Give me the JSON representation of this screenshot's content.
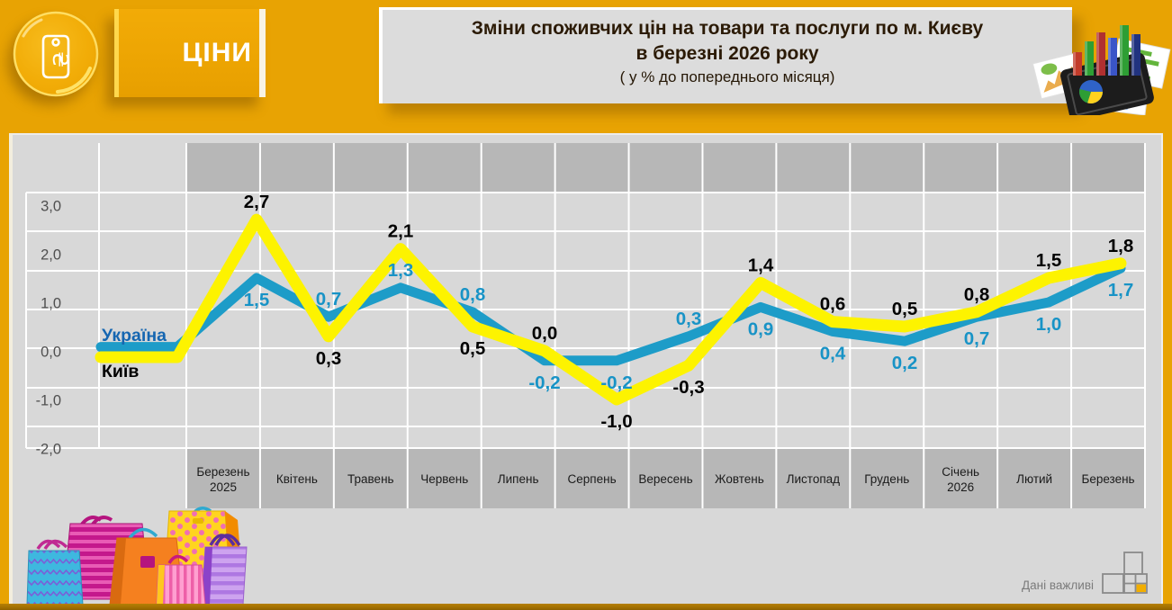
{
  "header": {
    "category_label": "ЦІНИ",
    "title_line1": "Зміни споживчих цін на товари та послуги по м. Києву",
    "title_line2": "в березні 2026 року",
    "title_line3": "( у  % до попереднього місяця)"
  },
  "footer": {
    "brand_text": "Дані важливі"
  },
  "colors": {
    "background_orange": "#E8A303",
    "panel_grey": "#D8D8D8",
    "band_grey": "#B7B7B7",
    "grid_white": "#FFFFFF",
    "ukraine_line": "#1D9CC8",
    "kyiv_line": "#FDF300",
    "ukraine_label": "#1893C6",
    "kyiv_label": "#000000",
    "legend_ukraine": "#1566B1",
    "tick_label": "#4F4F4F",
    "month_label": "#1B1B1B",
    "logo_accent": "#F2AE00"
  },
  "chart_data": {
    "type": "line",
    "title": "Зміни споживчих цін на товари та послуги по м. Києву в березні 2026 року",
    "subtitle": "( у % до попереднього місяця)",
    "unit": "%",
    "categories": [
      "Березень\n2025",
      "Квітень",
      "Травень",
      "Червень",
      "Липень",
      "Серпень",
      "Вересень",
      "Жовтень",
      "Листопад",
      "Грудень",
      "Січень\n2026",
      "Лютий",
      "Березень"
    ],
    "series": [
      {
        "name": "Україна",
        "color": "#1D9CC8",
        "label_color": "#1893C6",
        "stroke_width": 11,
        "lead_in": 0.08,
        "values": [
          1.5,
          0.7,
          1.3,
          0.8,
          -0.2,
          -0.2,
          0.3,
          0.9,
          0.4,
          0.2,
          0.7,
          1.0,
          1.7
        ],
        "label_side": [
          "below",
          "above",
          "above",
          "above",
          "below",
          "below",
          "above",
          "below",
          "below",
          "below",
          "below",
          "below",
          "below"
        ]
      },
      {
        "name": "Київ",
        "color": "#FDF300",
        "label_color": "#000000",
        "stroke_width": 13,
        "lead_in": -0.13,
        "values": [
          2.7,
          0.3,
          2.1,
          0.5,
          0.0,
          -1.0,
          -0.3,
          1.4,
          0.6,
          0.5,
          0.8,
          1.5,
          1.8
        ],
        "label_side": [
          "above",
          "below",
          "above",
          "below",
          "above",
          "below",
          "below",
          "above",
          "above",
          "above",
          "above",
          "above",
          "above"
        ]
      }
    ],
    "yticks": [
      3,
      2,
      1,
      0,
      -1,
      -2
    ],
    "ylim": [
      -2.1,
      3.3
    ],
    "grid": true,
    "decimal_separator": ",",
    "legend_position": "inside-left",
    "legend_colors": {
      "Україна": "#1566B1",
      "Київ": "#000000"
    }
  }
}
